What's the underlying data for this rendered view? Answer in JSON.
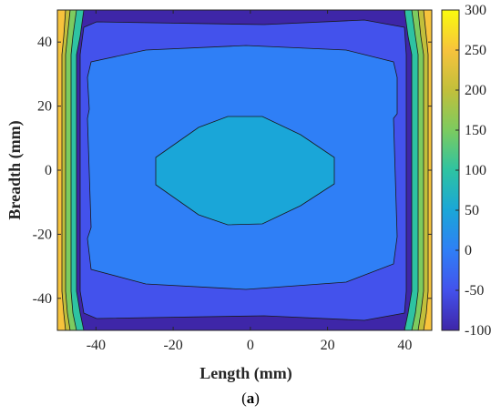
{
  "chart_data": {
    "type": "heatmap",
    "subtype": "filled-contour",
    "xlabel": "Length (mm)",
    "ylabel": "Breadth (mm)",
    "xlim": [
      -50,
      47
    ],
    "ylim": [
      -50,
      50
    ],
    "x_ticks": [
      "-40",
      "-20",
      "0",
      "20",
      "40"
    ],
    "x_tick_values": [
      -40,
      -20,
      0,
      20,
      40
    ],
    "y_ticks": [
      "40",
      "20",
      "0",
      "-20",
      "-40"
    ],
    "y_tick_values": [
      40,
      20,
      0,
      -20,
      -40
    ],
    "colorbar": {
      "range": [
        -100,
        300
      ],
      "ticks": [
        "300",
        "250",
        "200",
        "150",
        "100",
        "50",
        "0",
        "-50",
        "-100"
      ],
      "tick_values": [
        300,
        250,
        200,
        150,
        100,
        50,
        0,
        -50,
        -100
      ],
      "colormap": "parula"
    },
    "contour_levels": [
      -100,
      -50,
      0,
      50,
      100,
      150,
      200,
      250,
      300
    ],
    "regions": [
      {
        "level": "-50 to 0",
        "description": "outer band near top/bottom edges"
      },
      {
        "level": "0 to 50",
        "description": "large central region"
      },
      {
        "level": "50 to 100",
        "description": "central lens, x approx -25 to 22, y approx -18 to 15"
      },
      {
        "level": "100 to 300",
        "description": "narrow bands at left and right edges"
      }
    ],
    "grid": false
  },
  "caption": "(a)",
  "colors": {
    "c_m100": "#3e26a8",
    "c_m50": "#4352ec",
    "c_0": "#2f7ff6",
    "c_50": "#1aa6d8",
    "c_100": "#2ec3a2",
    "c_150": "#7ccb5f",
    "c_200": "#c2bf3b",
    "c_250": "#f7c33c",
    "c_300": "#f9fb0e"
  }
}
